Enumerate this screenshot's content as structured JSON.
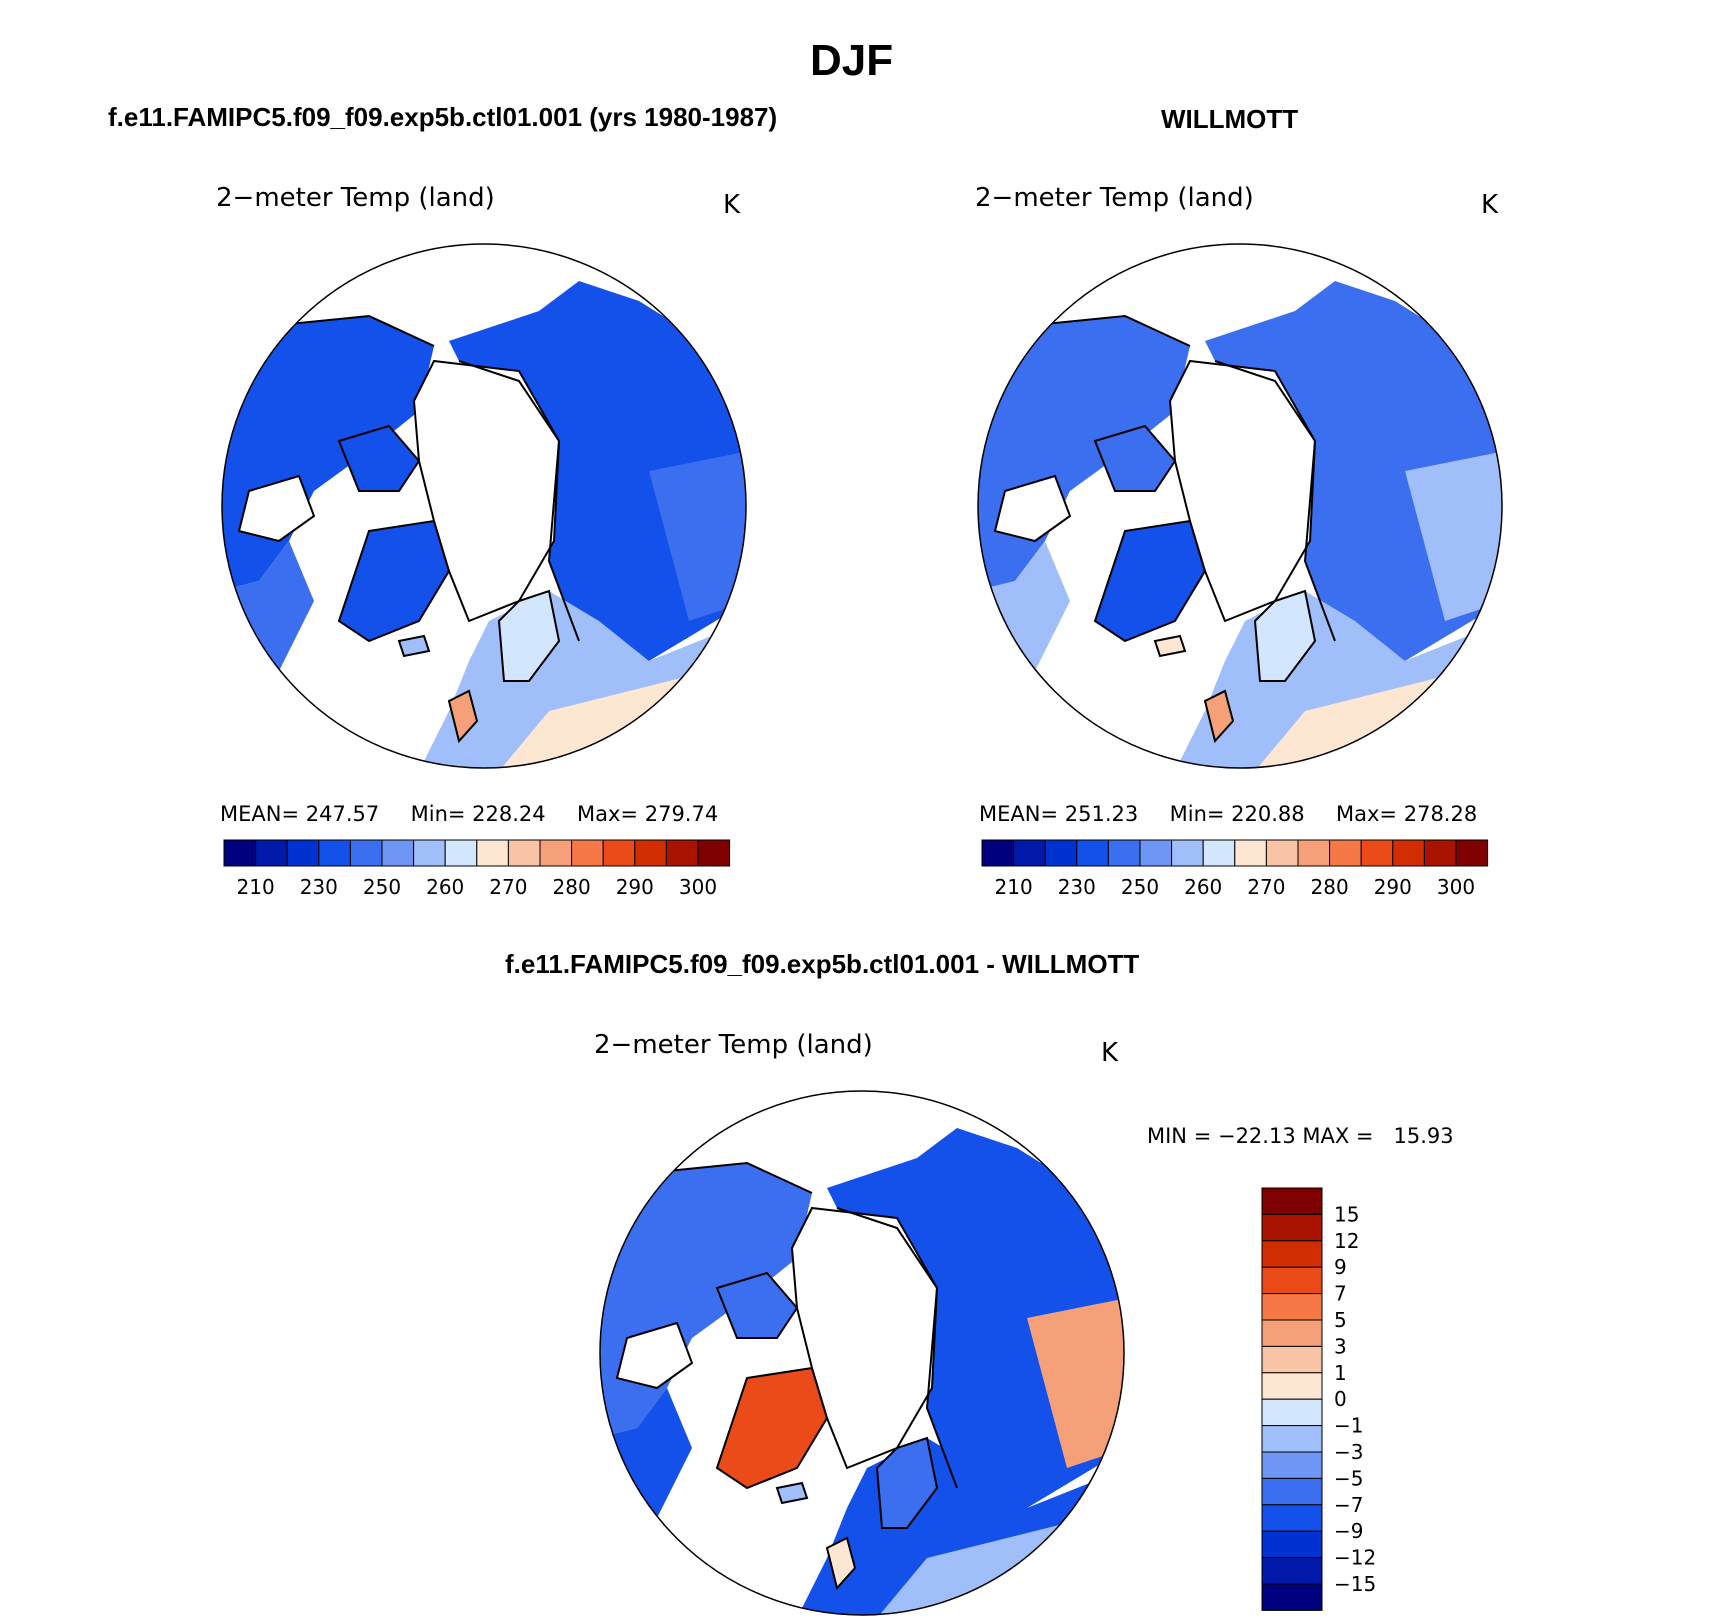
{
  "title": "DJF",
  "panels": [
    {
      "id": "model",
      "header": "f.e11.FAMIPC5.f09_f09.exp5b.ctl01.001 (yrs 1980-1987)",
      "variable": "2−meter Temp (land)",
      "units": "K",
      "mean_label": "MEAN=",
      "mean": "247.57",
      "min_label": "Min=",
      "min": "228.24",
      "max_label": "Max=",
      "max": "279.74"
    },
    {
      "id": "obs",
      "header": "WILLMOTT",
      "variable": "2−meter Temp (land)",
      "units": "K",
      "mean_label": "MEAN=",
      "mean": "251.23",
      "min_label": "Min=",
      "min": "220.88",
      "max_label": "Max=",
      "max": "278.28"
    }
  ],
  "diff_panel": {
    "header": "f.e11.FAMIPC5.f09_f09.exp5b.ctl01.001 - WILLMOTT",
    "variable": "2−meter Temp (land)",
    "units": "K",
    "minmax_text": "MIN = −22.13 MAX =   15.93"
  },
  "abs_colorbar": {
    "colors": [
      "#00007f",
      "#0019a8",
      "#0032d2",
      "#1450ea",
      "#3c6ef0",
      "#6e96f5",
      "#a0bef9",
      "#d2e6fd",
      "#fde6d2",
      "#f9c3a5",
      "#f5a078",
      "#f57846",
      "#ea4b19",
      "#d22d00",
      "#a81400",
      "#7f0000"
    ],
    "ticks": [
      "210",
      "230",
      "250",
      "260",
      "270",
      "280",
      "290",
      "300"
    ]
  },
  "diff_colorbar": {
    "colors": [
      "#00007f",
      "#0019a8",
      "#0032d2",
      "#1450ea",
      "#3c6ef0",
      "#6e96f5",
      "#a0bef9",
      "#d2e6fd",
      "#fde6d2",
      "#f9c3a5",
      "#f5a078",
      "#f57846",
      "#ea4b19",
      "#d22d00",
      "#a81400",
      "#7f0000"
    ],
    "ticks": [
      "15",
      "12",
      "9",
      "7",
      "5",
      "3",
      "1",
      "0",
      "−1",
      "−3",
      "−5",
      "−7",
      "−9",
      "−12",
      "−15"
    ]
  },
  "map_palette": {
    "deep_blue": "#1450ea",
    "mid_blue": "#3c6ef0",
    "light_blue": "#a0bef9",
    "pale_blue": "#d2e6fd",
    "pale_orange": "#fde6d2",
    "orange": "#f5a078",
    "red": "#ea4b19"
  }
}
